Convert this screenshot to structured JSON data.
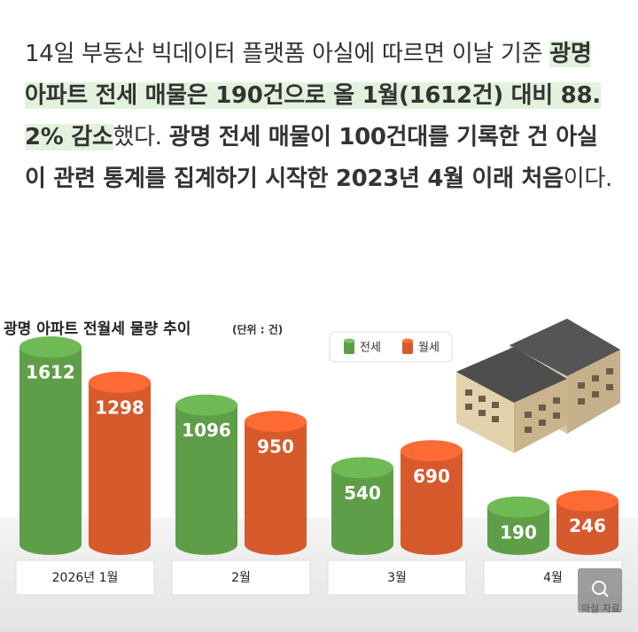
{
  "article": {
    "segments": [
      {
        "text": "14일 부동산 빅데이터 플랫폼 아실에 따르면 이날 기준 ",
        "bold": false,
        "highlight": false
      },
      {
        "text": "광명 아파트 전세 매물은 190건으로 올 1월(1612건) 대비 88.2% 감소",
        "bold": true,
        "highlight": true
      },
      {
        "text": "했다. ",
        "bold": false,
        "highlight": false
      },
      {
        "text": "광명 전세 매물이 100건대를 기록한 건 아실이 관련 통계를 집계하기 시작한 2023년 4월 이래 처음",
        "bold": true,
        "highlight": false
      },
      {
        "text": "이다.",
        "bold": false,
        "highlight": false
      }
    ]
  },
  "chart_data": {
    "type": "cylinder-bar",
    "title": "광명 아파트 전월세 물량 추이",
    "unit": "(단위 : 건)",
    "categories": [
      "2026년 1월",
      "2월",
      "3월",
      "4월"
    ],
    "series": [
      {
        "name": "전세",
        "color": "#5f9e48",
        "values": [
          1612,
          1096,
          540,
          190
        ]
      },
      {
        "name": "월세",
        "color": "#d65a2c",
        "values": [
          1298,
          950,
          690,
          246
        ]
      }
    ],
    "source": "아실 자료"
  }
}
